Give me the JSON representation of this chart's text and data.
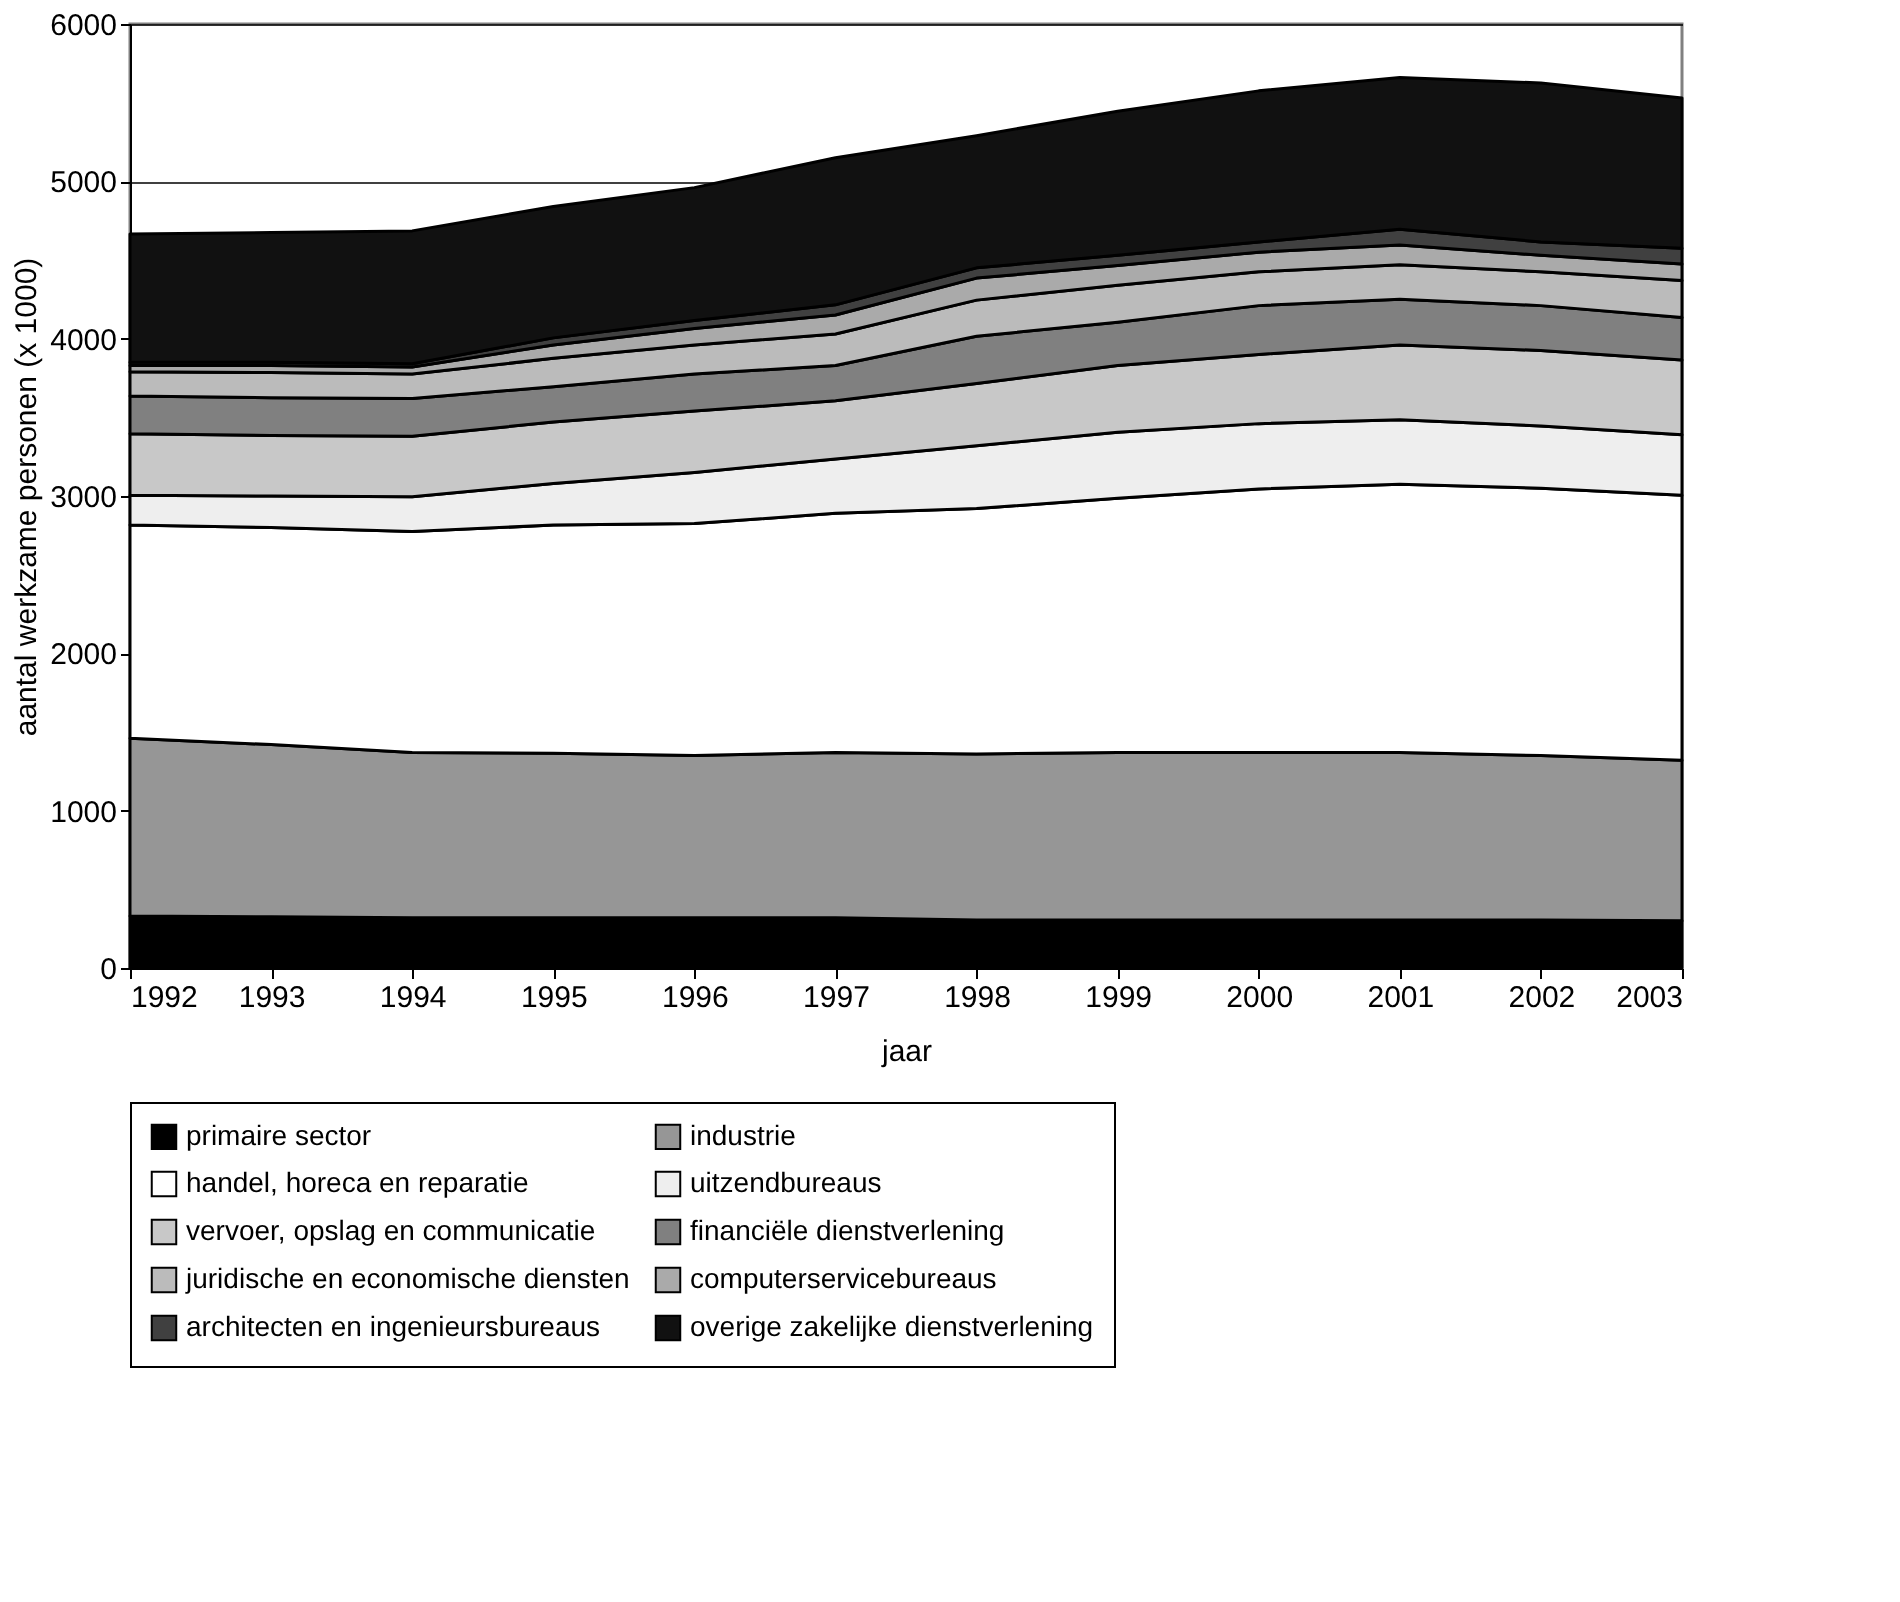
{
  "chart_data": {
    "type": "area",
    "stacked": true,
    "xlabel": "jaar",
    "ylabel": "aantal werkzame personen (x 1000)",
    "x": [
      1992,
      1993,
      1994,
      1995,
      1996,
      1997,
      1998,
      1999,
      2000,
      2001,
      2002,
      2003
    ],
    "xlim": [
      1992,
      2003
    ],
    "xticks": [
      1992,
      1993,
      1994,
      1995,
      1996,
      1997,
      1998,
      1999,
      2000,
      2001,
      2002,
      2003
    ],
    "ylim": [
      0,
      6000
    ],
    "yticks": [
      0,
      1000,
      2000,
      3000,
      4000,
      5000,
      6000
    ],
    "grid": "y",
    "legend": "bottom",
    "series": [
      {
        "name": "primaire sector",
        "color": "#000000",
        "values": [
          330,
          325,
          320,
          320,
          320,
          320,
          305,
          305,
          305,
          305,
          305,
          300
        ]
      },
      {
        "name": "industrie",
        "color": "#969696",
        "values": [
          1130,
          1095,
          1050,
          1045,
          1030,
          1050,
          1055,
          1065,
          1065,
          1065,
          1045,
          1020
        ]
      },
      {
        "name": "handel, horeca en reparatie",
        "color": "#ffffff",
        "values": [
          1355,
          1380,
          1405,
          1450,
          1475,
          1520,
          1560,
          1615,
          1675,
          1705,
          1700,
          1685
        ]
      },
      {
        "name": "uitzendbureaus",
        "color": "#eeeeee",
        "values": [
          190,
          200,
          220,
          265,
          325,
          345,
          400,
          420,
          415,
          410,
          395,
          385
        ]
      },
      {
        "name": "vervoer, opslag en communicatie",
        "color": "#c8c8c8",
        "values": [
          390,
          385,
          385,
          390,
          390,
          370,
          395,
          425,
          440,
          475,
          480,
          475
        ]
      },
      {
        "name": "financiële dienstverlening",
        "color": "#808080",
        "values": [
          240,
          240,
          240,
          225,
          235,
          225,
          300,
          275,
          310,
          290,
          285,
          270
        ]
      },
      {
        "name": "juridische en economische diensten",
        "color": "#bbbbbb",
        "values": [
          155,
          160,
          155,
          180,
          185,
          200,
          230,
          235,
          215,
          220,
          215,
          235
        ]
      },
      {
        "name": "computerservicebureaus",
        "color": "#aaaaaa",
        "values": [
          40,
          45,
          45,
          85,
          105,
          120,
          140,
          125,
          125,
          125,
          105,
          105
        ]
      },
      {
        "name": "architecten en ingenieursbureaus",
        "color": "#404040",
        "values": [
          20,
          20,
          20,
          45,
          50,
          65,
          65,
          65,
          65,
          100,
          85,
          100
        ]
      },
      {
        "name": "overige zakelijke dienstverlening",
        "color": "#111111",
        "values": [
          815,
          825,
          845,
          835,
          845,
          935,
          840,
          915,
          960,
          965,
          1010,
          955
        ]
      }
    ]
  }
}
